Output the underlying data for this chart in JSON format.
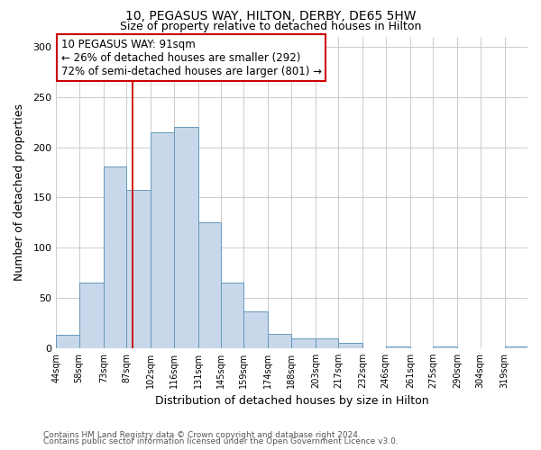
{
  "title": "10, PEGASUS WAY, HILTON, DERBY, DE65 5HW",
  "subtitle": "Size of property relative to detached houses in Hilton",
  "xlabel": "Distribution of detached houses by size in Hilton",
  "ylabel": "Number of detached properties",
  "footer_lines": [
    "Contains HM Land Registry data © Crown copyright and database right 2024.",
    "Contains public sector information licensed under the Open Government Licence v3.0."
  ],
  "bar_edges": [
    44,
    58,
    73,
    87,
    102,
    116,
    131,
    145,
    159,
    174,
    188,
    203,
    217,
    232,
    246,
    261,
    275,
    290,
    304,
    319,
    333
  ],
  "bar_heights": [
    13,
    65,
    181,
    158,
    215,
    220,
    125,
    65,
    37,
    14,
    10,
    10,
    5,
    0,
    2,
    0,
    2,
    0,
    0,
    2
  ],
  "bar_color": "#c8d8ea",
  "bar_edge_color": "#6699bb",
  "grid_color": "#cccccc",
  "vline_x": 91,
  "vline_color": "#cc0000",
  "annotation_box_text": "10 PEGASUS WAY: 91sqm\n← 26% of detached houses are smaller (292)\n72% of semi-detached houses are larger (801) →",
  "annotation_box_facecolor": "#ffffff",
  "annotation_box_edgecolor": "#cc0000",
  "ylim": [
    0,
    310
  ],
  "yticks": [
    0,
    50,
    100,
    150,
    200,
    250,
    300
  ],
  "bg_color": "#ffffff",
  "plot_bg_color": "#ffffff"
}
